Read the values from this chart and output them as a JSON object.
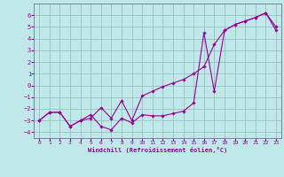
{
  "xlabel": "Windchill (Refroidissement éolien,°C)",
  "background_color": "#c0e8e8",
  "grid_color": "#90b8b8",
  "line_color": "#990099",
  "spine_color": "#7070a0",
  "xlim": [
    -0.5,
    23.5
  ],
  "ylim": [
    -4.5,
    7.0
  ],
  "xticks": [
    0,
    1,
    2,
    3,
    4,
    5,
    6,
    7,
    8,
    9,
    10,
    11,
    12,
    13,
    14,
    15,
    16,
    17,
    18,
    19,
    20,
    21,
    22,
    23
  ],
  "yticks": [
    -4,
    -3,
    -2,
    -1,
    0,
    1,
    2,
    3,
    4,
    5,
    6
  ],
  "line1_x": [
    0,
    1,
    2,
    3,
    4,
    5,
    6,
    7,
    8,
    9,
    10,
    11,
    12,
    13,
    14,
    15,
    16,
    17,
    18,
    19,
    20,
    21,
    22,
    23
  ],
  "line1_y": [
    -3.0,
    -2.3,
    -2.3,
    -3.5,
    -3.0,
    -2.8,
    -1.9,
    -2.8,
    -1.3,
    -3.0,
    -0.9,
    -0.5,
    -0.1,
    0.2,
    0.5,
    1.0,
    1.6,
    3.5,
    4.7,
    5.2,
    5.5,
    5.8,
    6.2,
    4.7
  ],
  "line2_x": [
    0,
    1,
    2,
    3,
    4,
    5,
    6,
    7,
    8,
    9,
    10,
    11,
    12,
    13,
    14,
    15,
    16,
    17,
    18,
    19,
    20,
    21,
    22,
    23
  ],
  "line2_y": [
    -3.0,
    -2.3,
    -2.3,
    -3.5,
    -3.0,
    -2.5,
    -3.5,
    -3.8,
    -2.8,
    -3.2,
    -2.5,
    -2.6,
    -2.6,
    -2.4,
    -2.2,
    -1.5,
    4.5,
    -0.5,
    4.7,
    5.2,
    5.5,
    5.8,
    6.2,
    5.0
  ]
}
